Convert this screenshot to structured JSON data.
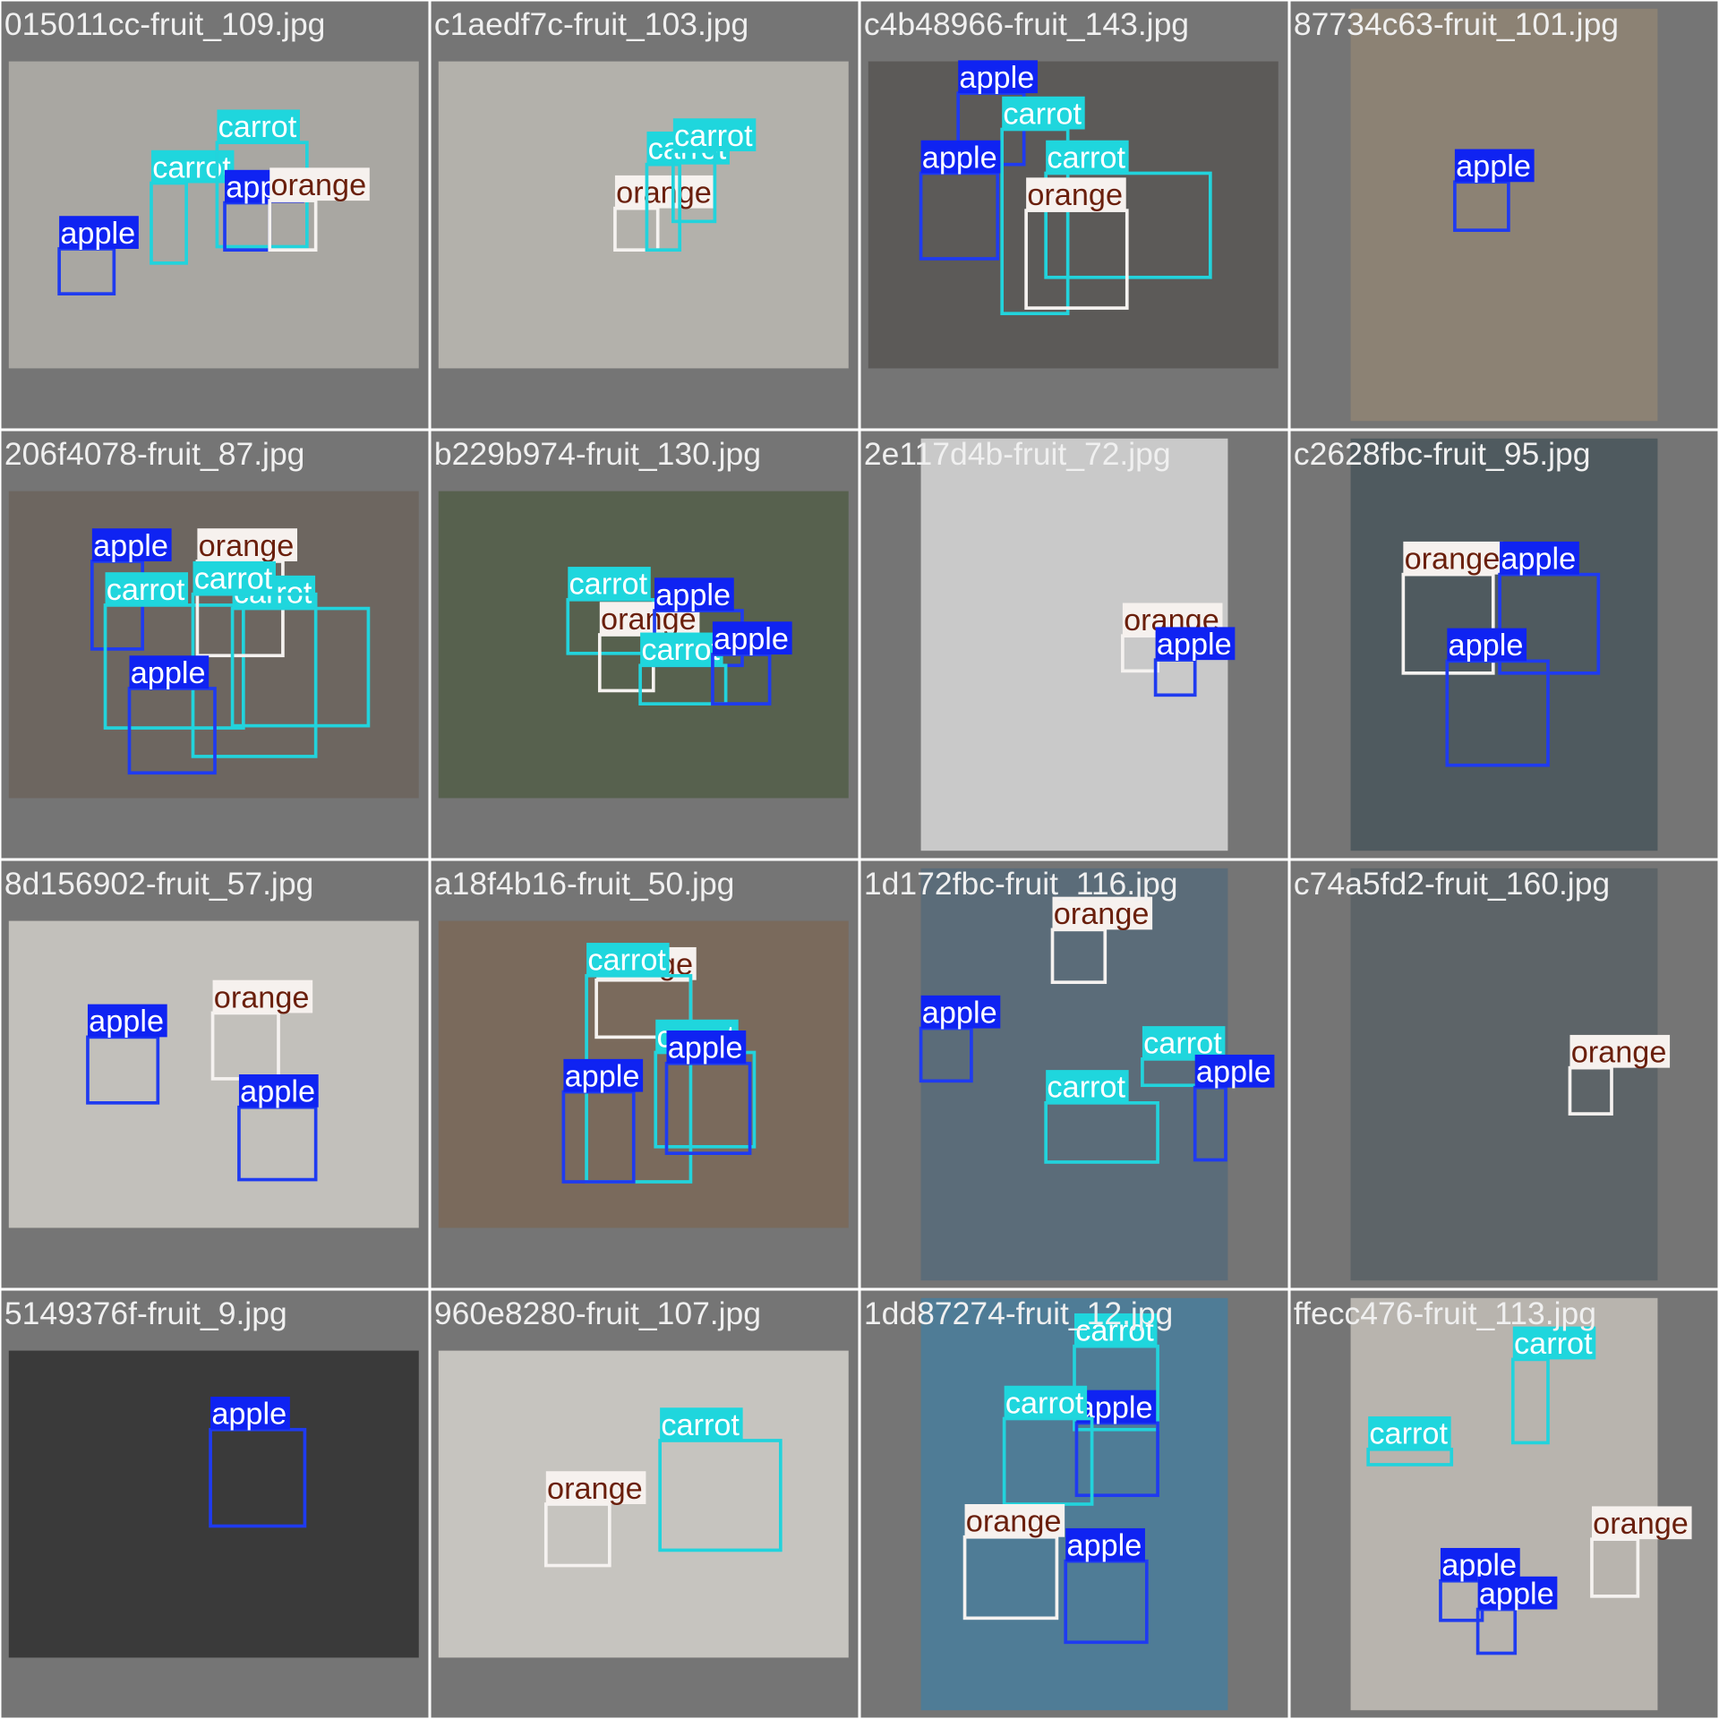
{
  "tiles": [
    {
      "filename": "015011cc-fruit_109.jpg",
      "boxes": [
        "apple",
        "carrot",
        "carrot",
        "apple",
        "orange"
      ]
    },
    {
      "filename": "c1aedf7c-fruit_103.jpg",
      "boxes": [
        "orange",
        "carrot",
        "carrot"
      ]
    },
    {
      "filename": "c4b48966-fruit_143.jpg",
      "boxes": [
        "apple",
        "carrot",
        "apple",
        "carrot",
        "orange"
      ]
    },
    {
      "filename": "87734c63-fruit_101.jpg",
      "boxes": [
        "apple"
      ]
    },
    {
      "filename": "206f4078-fruit_87.jpg",
      "boxes": [
        "apple",
        "carrot",
        "orange",
        "carrot",
        "carrot",
        "apple"
      ]
    },
    {
      "filename": "b229b974-fruit_130.jpg",
      "boxes": [
        "carrot",
        "orange",
        "apple",
        "carrot",
        "apple"
      ]
    },
    {
      "filename": "2e117d4b-fruit_72.jpg",
      "boxes": [
        "orange",
        "apple"
      ]
    },
    {
      "filename": "c2628fbc-fruit_95.jpg",
      "boxes": [
        "orange",
        "apple",
        "apple"
      ]
    },
    {
      "filename": "8d156902-fruit_57.jpg",
      "boxes": [
        "apple",
        "orange",
        "apple"
      ]
    },
    {
      "filename": "a18f4b16-fruit_50.jpg",
      "boxes": [
        "orange",
        "carrot",
        "carrot",
        "apple",
        "apple"
      ]
    },
    {
      "filename": "1d172fbc-fruit_116.jpg",
      "boxes": [
        "orange",
        "apple",
        "carrot",
        "carrot",
        "apple"
      ]
    },
    {
      "filename": "c74a5fd2-fruit_160.jpg",
      "boxes": [
        "orange"
      ]
    },
    {
      "filename": "5149376f-fruit_9.jpg",
      "boxes": [
        "apple"
      ]
    },
    {
      "filename": "960e8280-fruit_107.jpg",
      "boxes": [
        "orange",
        "carrot"
      ]
    },
    {
      "filename": "1dd87274-fruit_12.jpg",
      "boxes": [
        "carrot",
        "apple",
        "carrot",
        "orange",
        "apple"
      ]
    },
    {
      "filename": "ffecc476-fruit_113.jpg",
      "boxes": [
        "carrot",
        "carrot",
        "orange",
        "apple",
        "apple"
      ]
    }
  ]
}
